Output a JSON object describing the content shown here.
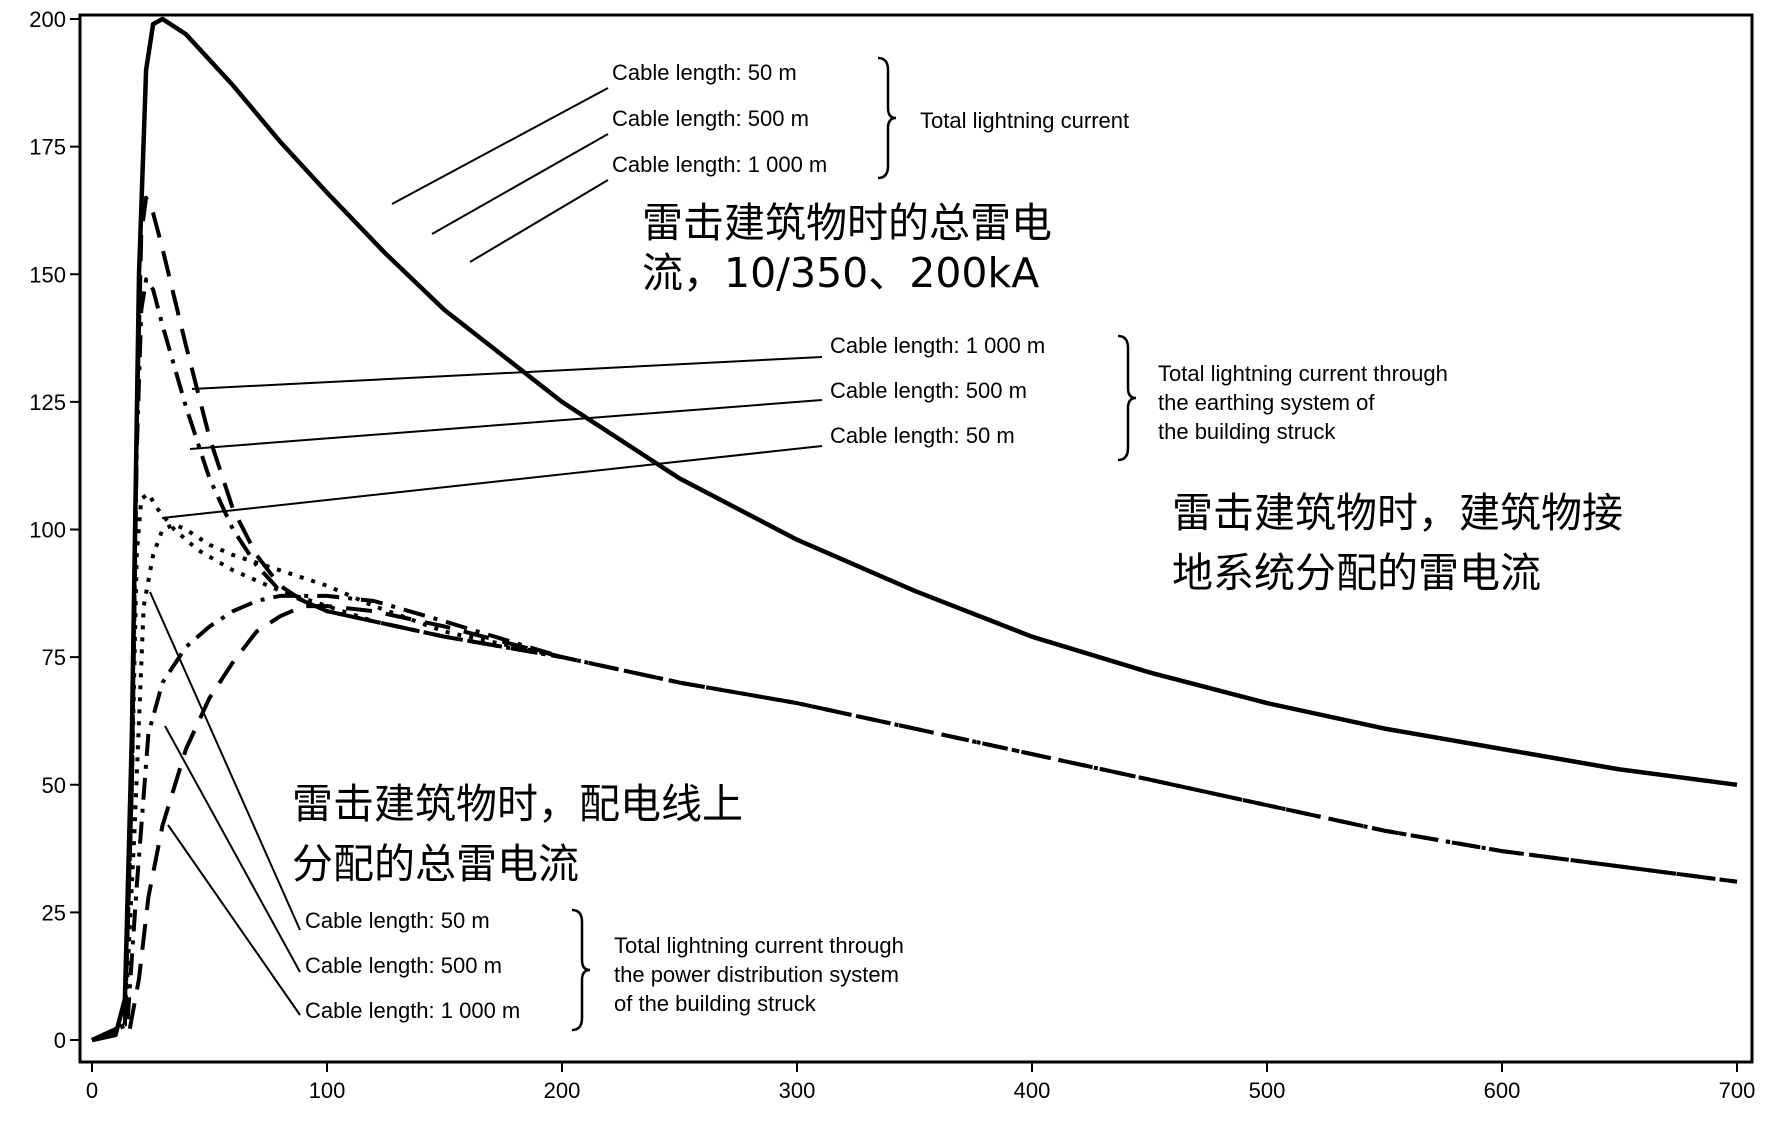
{
  "chart_data": {
    "type": "line",
    "title": "",
    "xlabel": "",
    "ylabel": "",
    "xlim": [
      0,
      700
    ],
    "ylim": [
      0,
      200
    ],
    "x_ticks": [
      "0",
      "100",
      "200",
      "300",
      "400",
      "500",
      "600",
      "700"
    ],
    "y_ticks": [
      "0",
      "25",
      "50",
      "75",
      "100",
      "125",
      "150",
      "175",
      "200"
    ],
    "grid": false,
    "series": [
      {
        "group": "total",
        "style": "solid",
        "points": [
          [
            0,
            0
          ],
          [
            10,
            1
          ],
          [
            14,
            8
          ],
          [
            17,
            60
          ],
          [
            20,
            150
          ],
          [
            23,
            190
          ],
          [
            26,
            199
          ],
          [
            30,
            200
          ],
          [
            40,
            197
          ],
          [
            60,
            187
          ],
          [
            80,
            176
          ],
          [
            100,
            166
          ],
          [
            125,
            154
          ],
          [
            150,
            143
          ],
          [
            200,
            125
          ],
          [
            250,
            110
          ],
          [
            300,
            98
          ],
          [
            350,
            88
          ],
          [
            400,
            79
          ],
          [
            450,
            72
          ],
          [
            500,
            66
          ],
          [
            550,
            61
          ],
          [
            600,
            57
          ],
          [
            650,
            53
          ],
          [
            700,
            50
          ]
        ]
      },
      {
        "group": "earthing",
        "style": "dash",
        "points": [
          [
            0,
            0
          ],
          [
            14,
            3
          ],
          [
            17,
            50
          ],
          [
            19,
            120
          ],
          [
            21,
            158
          ],
          [
            23,
            165
          ],
          [
            26,
            162
          ],
          [
            30,
            155
          ],
          [
            40,
            136
          ],
          [
            50,
            118
          ],
          [
            60,
            104
          ],
          [
            70,
            95
          ],
          [
            80,
            89
          ],
          [
            90,
            86
          ],
          [
            100,
            84
          ],
          [
            120,
            82
          ],
          [
            150,
            79
          ],
          [
            200,
            75
          ],
          [
            250,
            70
          ],
          [
            300,
            66
          ],
          [
            350,
            61
          ],
          [
            400,
            56
          ],
          [
            450,
            51
          ],
          [
            500,
            46
          ],
          [
            550,
            41
          ],
          [
            600,
            37
          ],
          [
            650,
            34
          ],
          [
            700,
            31
          ]
        ]
      },
      {
        "group": "earthing",
        "style": "dash-dot",
        "points": [
          [
            0,
            0
          ],
          [
            14,
            3
          ],
          [
            17,
            50
          ],
          [
            19,
            115
          ],
          [
            21,
            143
          ],
          [
            23,
            149
          ],
          [
            26,
            147
          ],
          [
            30,
            140
          ],
          [
            40,
            124
          ],
          [
            50,
            110
          ],
          [
            60,
            100
          ],
          [
            70,
            93
          ],
          [
            80,
            88
          ],
          [
            90,
            86
          ],
          [
            100,
            84
          ],
          [
            120,
            82
          ],
          [
            150,
            79
          ],
          [
            200,
            75
          ],
          [
            250,
            70
          ],
          [
            300,
            66
          ],
          [
            350,
            61
          ],
          [
            400,
            56
          ],
          [
            450,
            51
          ],
          [
            500,
            46
          ],
          [
            550,
            41
          ],
          [
            600,
            37
          ],
          [
            650,
            34
          ],
          [
            700,
            31
          ]
        ]
      },
      {
        "group": "earthing",
        "style": "dotted",
        "points": [
          [
            0,
            0
          ],
          [
            14,
            3
          ],
          [
            17,
            50
          ],
          [
            19,
            95
          ],
          [
            21,
            106
          ],
          [
            24,
            107
          ],
          [
            28,
            104
          ],
          [
            35,
            100
          ],
          [
            45,
            96
          ],
          [
            60,
            92
          ],
          [
            80,
            88
          ],
          [
            100,
            85
          ],
          [
            120,
            82
          ],
          [
            150,
            79
          ],
          [
            200,
            75
          ],
          [
            250,
            70
          ],
          [
            300,
            66
          ],
          [
            350,
            61
          ],
          [
            400,
            56
          ],
          [
            450,
            51
          ],
          [
            500,
            46
          ],
          [
            550,
            41
          ],
          [
            600,
            37
          ],
          [
            650,
            34
          ],
          [
            700,
            31
          ]
        ]
      },
      {
        "group": "power",
        "style": "dotted",
        "points": [
          [
            0,
            0
          ],
          [
            14,
            3
          ],
          [
            18,
            40
          ],
          [
            22,
            85
          ],
          [
            26,
            95
          ],
          [
            30,
            100
          ],
          [
            35,
            101
          ],
          [
            40,
            100
          ],
          [
            50,
            97
          ],
          [
            60,
            95
          ],
          [
            80,
            92
          ],
          [
            100,
            89
          ],
          [
            120,
            85
          ],
          [
            150,
            80
          ],
          [
            200,
            75
          ]
        ]
      },
      {
        "group": "power",
        "style": "dash-dot",
        "points": [
          [
            0,
            0
          ],
          [
            15,
            3
          ],
          [
            19,
            30
          ],
          [
            24,
            60
          ],
          [
            30,
            70
          ],
          [
            40,
            77
          ],
          [
            50,
            81
          ],
          [
            60,
            84
          ],
          [
            70,
            86
          ],
          [
            80,
            87
          ],
          [
            100,
            87
          ],
          [
            120,
            86
          ],
          [
            150,
            82
          ],
          [
            200,
            75
          ]
        ]
      },
      {
        "group": "power",
        "style": "dash",
        "points": [
          [
            0,
            0
          ],
          [
            16,
            2
          ],
          [
            20,
            12
          ],
          [
            24,
            28
          ],
          [
            30,
            42
          ],
          [
            40,
            57
          ],
          [
            50,
            67
          ],
          [
            60,
            74
          ],
          [
            70,
            80
          ],
          [
            80,
            83
          ],
          [
            90,
            85
          ],
          [
            100,
            85
          ],
          [
            120,
            84
          ],
          [
            150,
            81
          ],
          [
            200,
            75
          ]
        ]
      }
    ],
    "annotations": {
      "top": {
        "labels": [
          "Cable length: 50 m",
          "Cable length: 500 m",
          "Cable length: 1 000 m"
        ],
        "brace_text": [
          "Total lightning current"
        ],
        "cn_text": [
          "雷击建筑物时的总雷电",
          "流，10/350、200kA"
        ]
      },
      "middle": {
        "labels": [
          "Cable length: 1 000 m",
          "Cable length: 500 m",
          "Cable length: 50 m"
        ],
        "brace_text": [
          "Total lightning current through",
          "the earthing system of",
          "the building struck"
        ],
        "cn_text": [
          "雷击建筑物时，建筑物接",
          "地系统分配的雷电流"
        ]
      },
      "bottom": {
        "labels": [
          "Cable length: 50 m",
          "Cable length: 500 m",
          "Cable length: 1 000 m"
        ],
        "brace_text": [
          "Total lightning current through",
          "the power distribution system",
          "of the building struck"
        ],
        "cn_text": [
          "雷击建筑物时，配电线上",
          "分配的总雷电流"
        ]
      }
    }
  }
}
